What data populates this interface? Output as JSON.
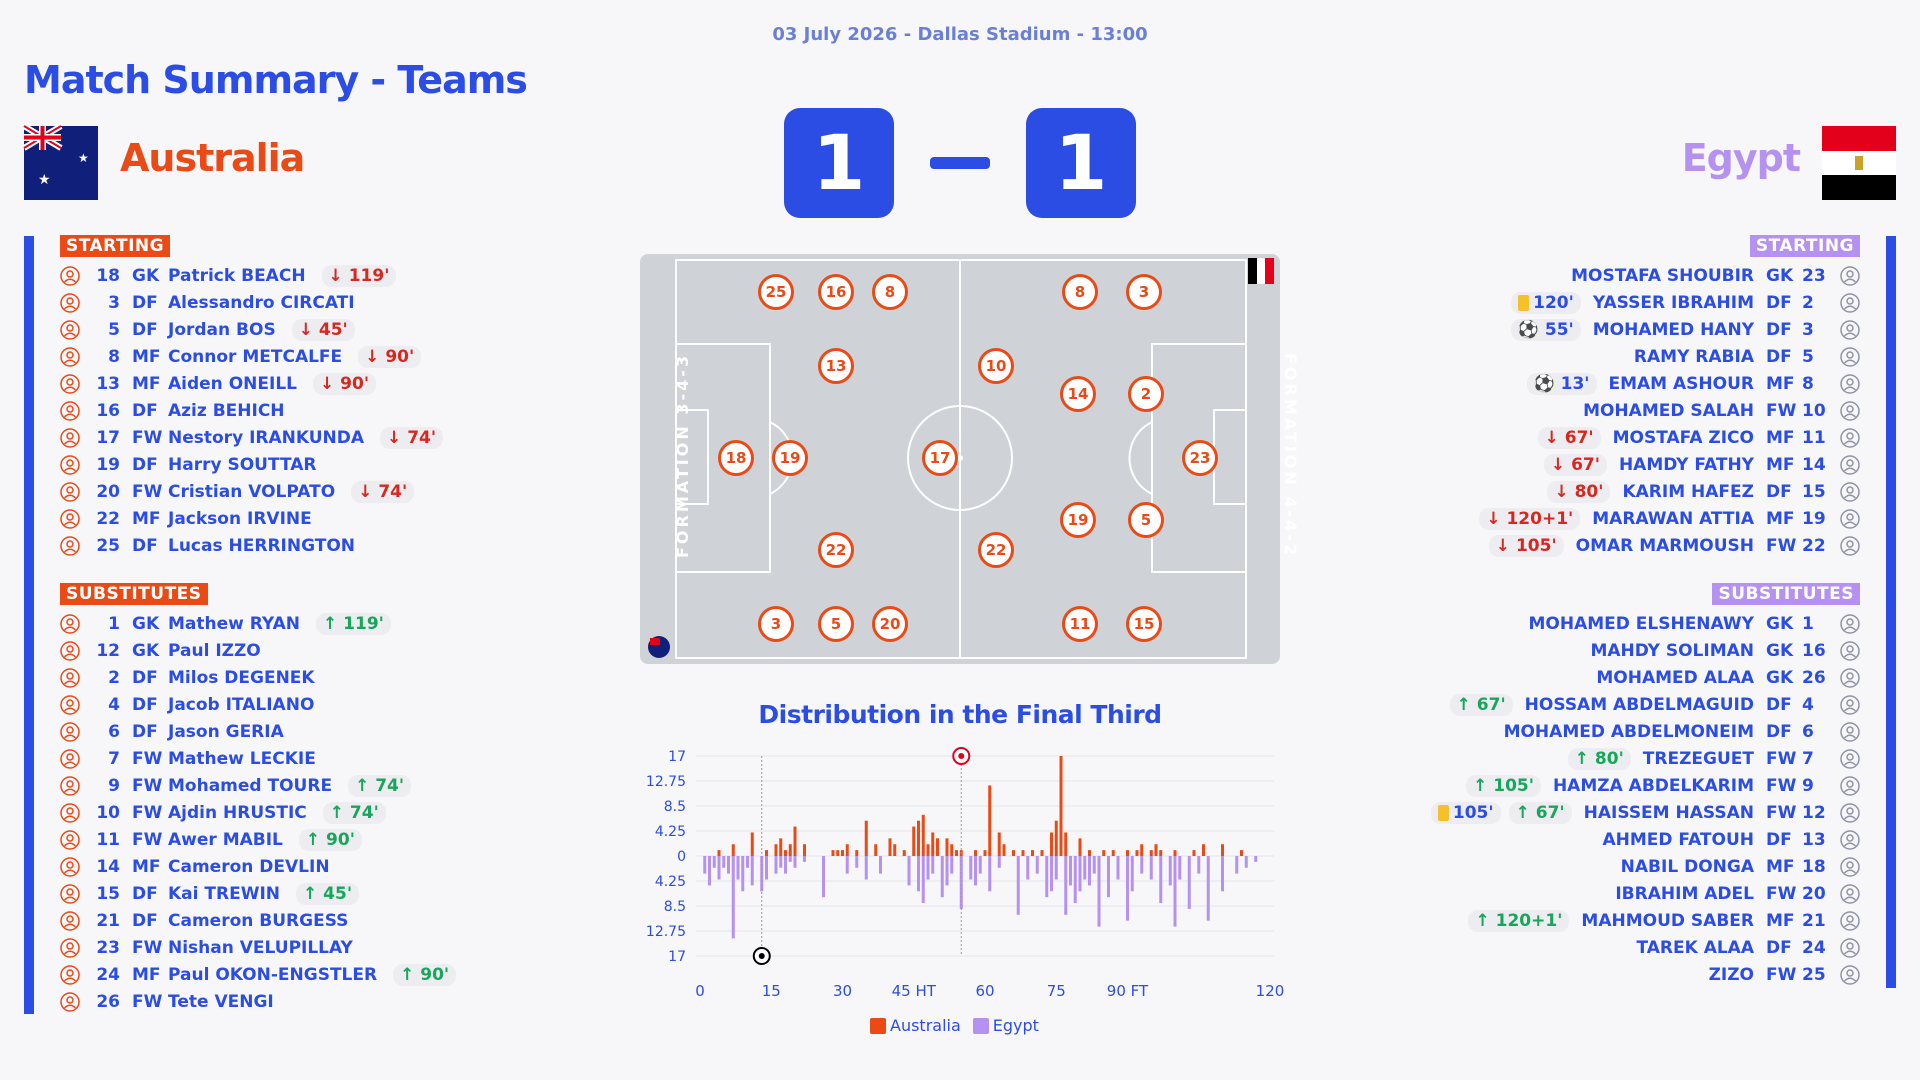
{
  "header": {
    "date_line": "03 July 2026 - Dallas Stadium - 13:00",
    "title": "Match Summary - Teams"
  },
  "home": {
    "name": "Australia",
    "score": "1",
    "color": "#ea4a16",
    "starting_label": "STARTING",
    "subs_label": "SUBSTITUTES",
    "starting": [
      {
        "num": "18",
        "pos": "GK",
        "name": "Patrick BEACH",
        "events": [
          {
            "type": "out",
            "text": "↓ 119'"
          }
        ]
      },
      {
        "num": "3",
        "pos": "DF",
        "name": "Alessandro CIRCATI",
        "events": []
      },
      {
        "num": "5",
        "pos": "DF",
        "name": "Jordan BOS",
        "events": [
          {
            "type": "out",
            "text": "↓ 45'"
          }
        ]
      },
      {
        "num": "8",
        "pos": "MF",
        "name": "Connor METCALFE",
        "events": [
          {
            "type": "out",
            "text": "↓ 90'"
          }
        ]
      },
      {
        "num": "13",
        "pos": "MF",
        "name": "Aiden ONEILL",
        "events": [
          {
            "type": "out",
            "text": "↓ 90'"
          }
        ]
      },
      {
        "num": "16",
        "pos": "DF",
        "name": "Aziz BEHICH",
        "events": []
      },
      {
        "num": "17",
        "pos": "FW",
        "name": "Nestory IRANKUNDA",
        "events": [
          {
            "type": "out",
            "text": "↓ 74'"
          }
        ]
      },
      {
        "num": "19",
        "pos": "DF",
        "name": "Harry SOUTTAR",
        "events": []
      },
      {
        "num": "20",
        "pos": "FW",
        "name": "Cristian VOLPATO",
        "events": [
          {
            "type": "out",
            "text": "↓ 74'"
          }
        ]
      },
      {
        "num": "22",
        "pos": "MF",
        "name": "Jackson IRVINE",
        "events": []
      },
      {
        "num": "25",
        "pos": "DF",
        "name": "Lucas HERRINGTON",
        "events": []
      }
    ],
    "subs": [
      {
        "num": "1",
        "pos": "GK",
        "name": "Mathew RYAN",
        "events": [
          {
            "type": "in",
            "text": "↑ 119'"
          }
        ]
      },
      {
        "num": "12",
        "pos": "GK",
        "name": "Paul IZZO",
        "events": []
      },
      {
        "num": "2",
        "pos": "DF",
        "name": "Milos DEGENEK",
        "events": []
      },
      {
        "num": "4",
        "pos": "DF",
        "name": "Jacob ITALIANO",
        "events": []
      },
      {
        "num": "6",
        "pos": "DF",
        "name": "Jason GERIA",
        "events": []
      },
      {
        "num": "7",
        "pos": "FW",
        "name": "Mathew LECKIE",
        "events": []
      },
      {
        "num": "9",
        "pos": "FW",
        "name": "Mohamed TOURE",
        "events": [
          {
            "type": "in",
            "text": "↑ 74'"
          }
        ]
      },
      {
        "num": "10",
        "pos": "FW",
        "name": "Ajdin HRUSTIC",
        "events": [
          {
            "type": "in",
            "text": "↑ 74'"
          }
        ]
      },
      {
        "num": "11",
        "pos": "FW",
        "name": "Awer MABIL",
        "events": [
          {
            "type": "in",
            "text": "↑ 90'"
          }
        ]
      },
      {
        "num": "14",
        "pos": "MF",
        "name": "Cameron DEVLIN",
        "events": []
      },
      {
        "num": "15",
        "pos": "DF",
        "name": "Kai TREWIN",
        "events": [
          {
            "type": "in",
            "text": "↑ 45'"
          }
        ]
      },
      {
        "num": "21",
        "pos": "DF",
        "name": "Cameron BURGESS",
        "events": []
      },
      {
        "num": "23",
        "pos": "FW",
        "name": "Nishan VELUPILLAY",
        "events": []
      },
      {
        "num": "24",
        "pos": "MF",
        "name": "Paul OKON-ENGSTLER",
        "events": [
          {
            "type": "in",
            "text": "↑ 90'"
          }
        ]
      },
      {
        "num": "26",
        "pos": "FW",
        "name": "Tete VENGI",
        "events": []
      }
    ],
    "formation": "FORMATION 3-4-3",
    "pitch": [
      "25",
      "16",
      "8",
      "13",
      "18",
      "19",
      "17",
      "22",
      "3",
      "5",
      "20"
    ]
  },
  "away": {
    "name": "Egypt",
    "score": "1",
    "color": "#b592f0",
    "starting_label": "STARTING",
    "subs_label": "SUBSTITUTES",
    "starting": [
      {
        "num": "23",
        "pos": "GK",
        "name": "MOSTAFA SHOUBIR",
        "events": []
      },
      {
        "num": "2",
        "pos": "DF",
        "name": "YASSER IBRAHIM",
        "events": [
          {
            "type": "card",
            "text": "120'"
          }
        ]
      },
      {
        "num": "3",
        "pos": "DF",
        "name": "MOHAMED HANY",
        "events": [
          {
            "type": "goal",
            "text": "⚽ 55'"
          }
        ]
      },
      {
        "num": "5",
        "pos": "DF",
        "name": "RAMY RABIA",
        "events": []
      },
      {
        "num": "8",
        "pos": "MF",
        "name": "EMAM ASHOUR",
        "events": [
          {
            "type": "goal",
            "text": "⚽ 13'"
          }
        ]
      },
      {
        "num": "10",
        "pos": "FW",
        "name": "MOHAMED SALAH",
        "events": []
      },
      {
        "num": "11",
        "pos": "MF",
        "name": "MOSTAFA ZICO",
        "events": [
          {
            "type": "out",
            "text": "↓ 67'"
          }
        ]
      },
      {
        "num": "14",
        "pos": "MF",
        "name": "HAMDY FATHY",
        "events": [
          {
            "type": "out",
            "text": "↓ 67'"
          }
        ]
      },
      {
        "num": "15",
        "pos": "DF",
        "name": "KARIM HAFEZ",
        "events": [
          {
            "type": "out",
            "text": "↓ 80'"
          }
        ]
      },
      {
        "num": "19",
        "pos": "MF",
        "name": "MARAWAN ATTIA",
        "events": [
          {
            "type": "out",
            "text": "↓ 120+1'"
          }
        ]
      },
      {
        "num": "22",
        "pos": "FW",
        "name": "OMAR MARMOUSH",
        "events": [
          {
            "type": "out",
            "text": "↓ 105'"
          }
        ]
      }
    ],
    "subs": [
      {
        "num": "1",
        "pos": "GK",
        "name": "MOHAMED ELSHENAWY",
        "events": []
      },
      {
        "num": "16",
        "pos": "GK",
        "name": "MAHDY SOLIMAN",
        "events": []
      },
      {
        "num": "26",
        "pos": "GK",
        "name": "MOHAMED ALAA",
        "events": []
      },
      {
        "num": "4",
        "pos": "DF",
        "name": "HOSSAM ABDELMAGUID",
        "events": [
          {
            "type": "in",
            "text": "↑ 67'"
          }
        ]
      },
      {
        "num": "6",
        "pos": "DF",
        "name": "MOHAMED ABDELMONEIM",
        "events": []
      },
      {
        "num": "7",
        "pos": "FW",
        "name": "TREZEGUET",
        "events": [
          {
            "type": "in",
            "text": "↑ 80'"
          }
        ]
      },
      {
        "num": "9",
        "pos": "FW",
        "name": "HAMZA ABDELKARIM",
        "events": [
          {
            "type": "in",
            "text": "↑ 105'"
          }
        ]
      },
      {
        "num": "12",
        "pos": "FW",
        "name": "HAISSEM HASSAN",
        "events": [
          {
            "type": "card",
            "text": "105'"
          },
          {
            "type": "in",
            "text": "↑ 67'"
          }
        ]
      },
      {
        "num": "13",
        "pos": "DF",
        "name": "AHMED FATOUH",
        "events": []
      },
      {
        "num": "18",
        "pos": "MF",
        "name": "NABIL DONGA",
        "events": []
      },
      {
        "num": "20",
        "pos": "FW",
        "name": "IBRAHIM ADEL",
        "events": []
      },
      {
        "num": "21",
        "pos": "MF",
        "name": "MAHMOUD SABER",
        "events": [
          {
            "type": "in",
            "text": "↑ 120+1'"
          }
        ]
      },
      {
        "num": "24",
        "pos": "DF",
        "name": "TAREK ALAA",
        "events": []
      },
      {
        "num": "25",
        "pos": "FW",
        "name": "ZIZO",
        "events": []
      }
    ],
    "formation": "FORMATION 4-4-2",
    "pitch": [
      "8",
      "3",
      "10",
      "14",
      "2",
      "23",
      "19",
      "5",
      "22",
      "11",
      "15"
    ]
  },
  "chart_data": {
    "type": "bar",
    "title": "Distribution in the Final Third",
    "x_tick_labels": [
      "0",
      "15",
      "30",
      "45 HT",
      "60",
      "75",
      "90 FT",
      "120"
    ],
    "x_tick_values": [
      0,
      15,
      30,
      45,
      60,
      75,
      90,
      120
    ],
    "y_tick_labels": [
      "17",
      "12.75",
      "8.5",
      "4.25",
      "0",
      "4.25",
      "8.5",
      "12.75",
      "17"
    ],
    "ylim": [
      -17,
      17
    ],
    "goal_markers": [
      {
        "minute": 13,
        "team": "Egypt"
      },
      {
        "minute": 55,
        "team": "Australia"
      }
    ],
    "series": [
      {
        "name": "Australia",
        "color": "#ea4a16",
        "x": [
          4,
          7,
          11,
          14,
          16,
          17,
          18,
          19,
          20,
          22,
          28,
          29,
          30,
          31,
          33,
          35,
          37,
          40,
          41,
          43,
          45,
          46,
          47,
          48,
          49,
          50,
          52,
          53,
          54,
          55,
          58,
          60,
          61,
          63,
          64,
          66,
          68,
          70,
          72,
          74,
          75,
          76,
          77,
          80,
          82,
          85,
          87,
          90,
          92,
          93,
          95,
          96,
          97,
          100,
          104,
          106,
          110,
          114
        ],
        "y": [
          1,
          2,
          4,
          1,
          2,
          3,
          1,
          2,
          5,
          2,
          1,
          1,
          1,
          2,
          1,
          6,
          2,
          3,
          2,
          1,
          5,
          6,
          7,
          2,
          4,
          3,
          3,
          2,
          1,
          1,
          1,
          1,
          12,
          4,
          2,
          1,
          1,
          1,
          1,
          4,
          6,
          17,
          4,
          3,
          1,
          1,
          1,
          1,
          1,
          2,
          1,
          2,
          1,
          1,
          1,
          2,
          2,
          1
        ]
      },
      {
        "name": "Egypt",
        "color": "#b592f0",
        "x": [
          1,
          2,
          3,
          4,
          5,
          6,
          7,
          8,
          9,
          10,
          11,
          13,
          14,
          16,
          17,
          18,
          19,
          20,
          22,
          26,
          31,
          33,
          35,
          38,
          44,
          46,
          47,
          48,
          49,
          51,
          52,
          53,
          55,
          57,
          58,
          59,
          61,
          63,
          67,
          69,
          71,
          73,
          74,
          75,
          77,
          78,
          79,
          80,
          81,
          82,
          83,
          84,
          86,
          88,
          90,
          91,
          93,
          95,
          97,
          99,
          100,
          101,
          103,
          105,
          107,
          110,
          113,
          115,
          117
        ],
        "y": [
          -3,
          -5,
          -2,
          -4,
          -2,
          -3,
          -14,
          -4,
          -6,
          -2,
          -5,
          -6,
          -4,
          -3,
          -2,
          -3,
          -1,
          -2,
          -1,
          -7,
          -3,
          -2,
          -4,
          -3,
          -5,
          -6,
          -8,
          -4,
          -3,
          -7,
          -5,
          -3,
          -9,
          -4,
          -5,
          -3,
          -6,
          -2,
          -10,
          -4,
          -3,
          -7,
          -6,
          -4,
          -10,
          -5,
          -8,
          -6,
          -4,
          -5,
          -3,
          -12,
          -7,
          -4,
          -11,
          -6,
          -3,
          -4,
          -8,
          -5,
          -12,
          -4,
          -9,
          -3,
          -11,
          -6,
          -3,
          -2,
          -1
        ]
      }
    ]
  },
  "legend": [
    {
      "label": "Australia",
      "color": "#ea4a16"
    },
    {
      "label": "Egypt",
      "color": "#b592f0"
    }
  ]
}
